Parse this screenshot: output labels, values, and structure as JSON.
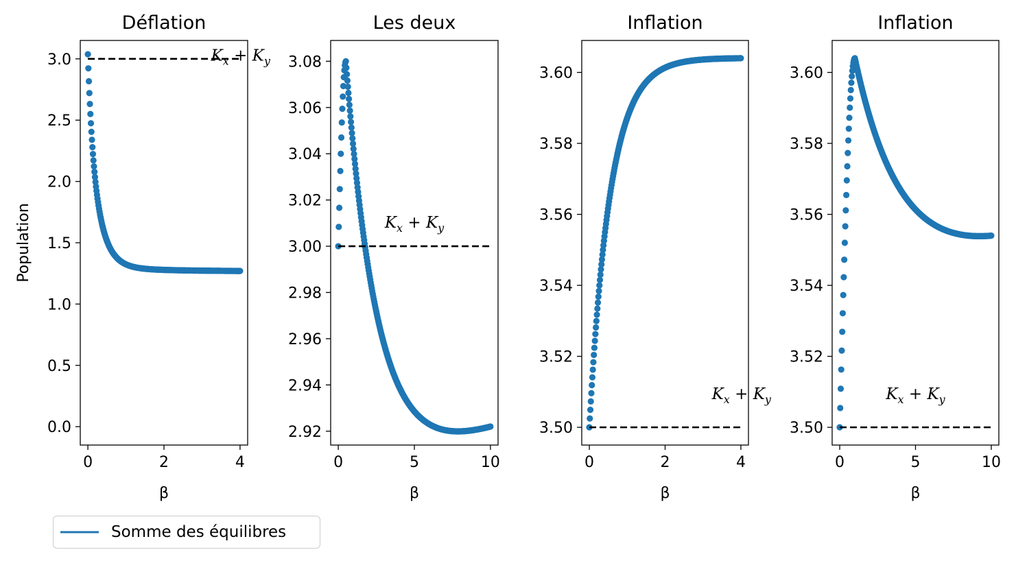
{
  "chart_data": [
    {
      "type": "scatter",
      "title": "Déflation",
      "xlabel": "β",
      "ylabel": "Population",
      "xlim": [
        -0.2,
        4.2
      ],
      "ylim": [
        -0.15,
        3.15
      ],
      "xticks": [
        0,
        2,
        4
      ],
      "xtick_labels": [
        "0",
        "2",
        "4"
      ],
      "yticks": [
        0.0,
        0.5,
        1.0,
        1.5,
        2.0,
        2.5,
        3.0
      ],
      "ytick_labels": [
        "0.0",
        "0.5",
        "1.0",
        "1.5",
        "2.0",
        "2.5",
        "3.0"
      ],
      "reference_line": {
        "y": 3.0,
        "x_range": [
          0,
          4
        ],
        "style": "dashed",
        "color": "#000000"
      },
      "annotation": {
        "text": "Kx + Ky",
        "x": 4.0,
        "y": 2.93
      },
      "series": [
        {
          "name": "Somme des équilibres",
          "color": "#1f77b4",
          "shape": "deflation",
          "x_range": [
            0,
            4
          ],
          "y_start": 3.0,
          "y_end": 1.27
        }
      ]
    },
    {
      "type": "scatter",
      "title": "Les deux",
      "xlabel": "β",
      "ylabel": "",
      "xlim": [
        -0.5,
        10.5
      ],
      "ylim": [
        2.914,
        3.089
      ],
      "xticks": [
        0,
        5,
        10
      ],
      "xtick_labels": [
        "0",
        "5",
        "10"
      ],
      "yticks": [
        2.92,
        2.94,
        2.96,
        2.98,
        3.0,
        3.02,
        3.04,
        3.06,
        3.08
      ],
      "ytick_labels": [
        "2.92",
        "2.94",
        "2.96",
        "2.98",
        "3.00",
        "3.02",
        "3.04",
        "3.06",
        "3.08"
      ],
      "reference_line": {
        "y": 3.0,
        "x_range": [
          0,
          10
        ],
        "style": "dashed",
        "color": "#000000"
      },
      "annotation": {
        "text": "Kx + Ky",
        "x": 5.0,
        "y": 3.005
      },
      "series": [
        {
          "name": "Somme des équilibres",
          "color": "#1f77b4",
          "shape": "both",
          "x_range": [
            0,
            10
          ],
          "y_start": 3.0,
          "y_peak": 3.08,
          "x_peak": 0.5,
          "y_end": 2.922
        }
      ]
    },
    {
      "type": "scatter",
      "title": "Inflation",
      "xlabel": "β",
      "ylabel": "",
      "xlim": [
        -0.2,
        4.2
      ],
      "ylim": [
        3.495,
        3.609
      ],
      "xticks": [
        0,
        2,
        4
      ],
      "xtick_labels": [
        "0",
        "2",
        "4"
      ],
      "yticks": [
        3.5,
        3.52,
        3.54,
        3.56,
        3.58,
        3.6
      ],
      "ytick_labels": [
        "3.50",
        "3.52",
        "3.54",
        "3.56",
        "3.58",
        "3.60"
      ],
      "reference_line": {
        "y": 3.5,
        "x_range": [
          0,
          4
        ],
        "style": "dashed",
        "color": "#000000"
      },
      "annotation": {
        "text": "Kx + Ky",
        "x": 4.0,
        "y": 3.506
      },
      "series": [
        {
          "name": "Somme des équilibres",
          "color": "#1f77b4",
          "shape": "inflation",
          "x_range": [
            0,
            4
          ],
          "y_start": 3.5,
          "y_end": 3.604
        }
      ]
    },
    {
      "type": "scatter",
      "title": "Inflation",
      "xlabel": "β",
      "ylabel": "",
      "xlim": [
        -0.5,
        10.5
      ],
      "ylim": [
        3.495,
        3.609
      ],
      "xticks": [
        0,
        5,
        10
      ],
      "xtick_labels": [
        "0",
        "5",
        "10"
      ],
      "yticks": [
        3.5,
        3.52,
        3.54,
        3.56,
        3.58,
        3.6
      ],
      "ytick_labels": [
        "3.50",
        "3.52",
        "3.54",
        "3.56",
        "3.58",
        "3.60"
      ],
      "reference_line": {
        "y": 3.5,
        "x_range": [
          0,
          10
        ],
        "style": "dashed",
        "color": "#000000"
      },
      "annotation": {
        "text": "Kx + Ky",
        "x": 5.0,
        "y": 3.506
      },
      "series": [
        {
          "name": "Somme des équilibres",
          "color": "#1f77b4",
          "shape": "inflation-peak",
          "x_range": [
            0,
            10
          ],
          "y_start": 3.5,
          "y_peak": 3.604,
          "x_peak": 1.0,
          "y_end": 3.554
        }
      ]
    }
  ],
  "legend": {
    "label": "Somme des équilibres",
    "color": "#1f77b4",
    "placement": "below-left"
  }
}
